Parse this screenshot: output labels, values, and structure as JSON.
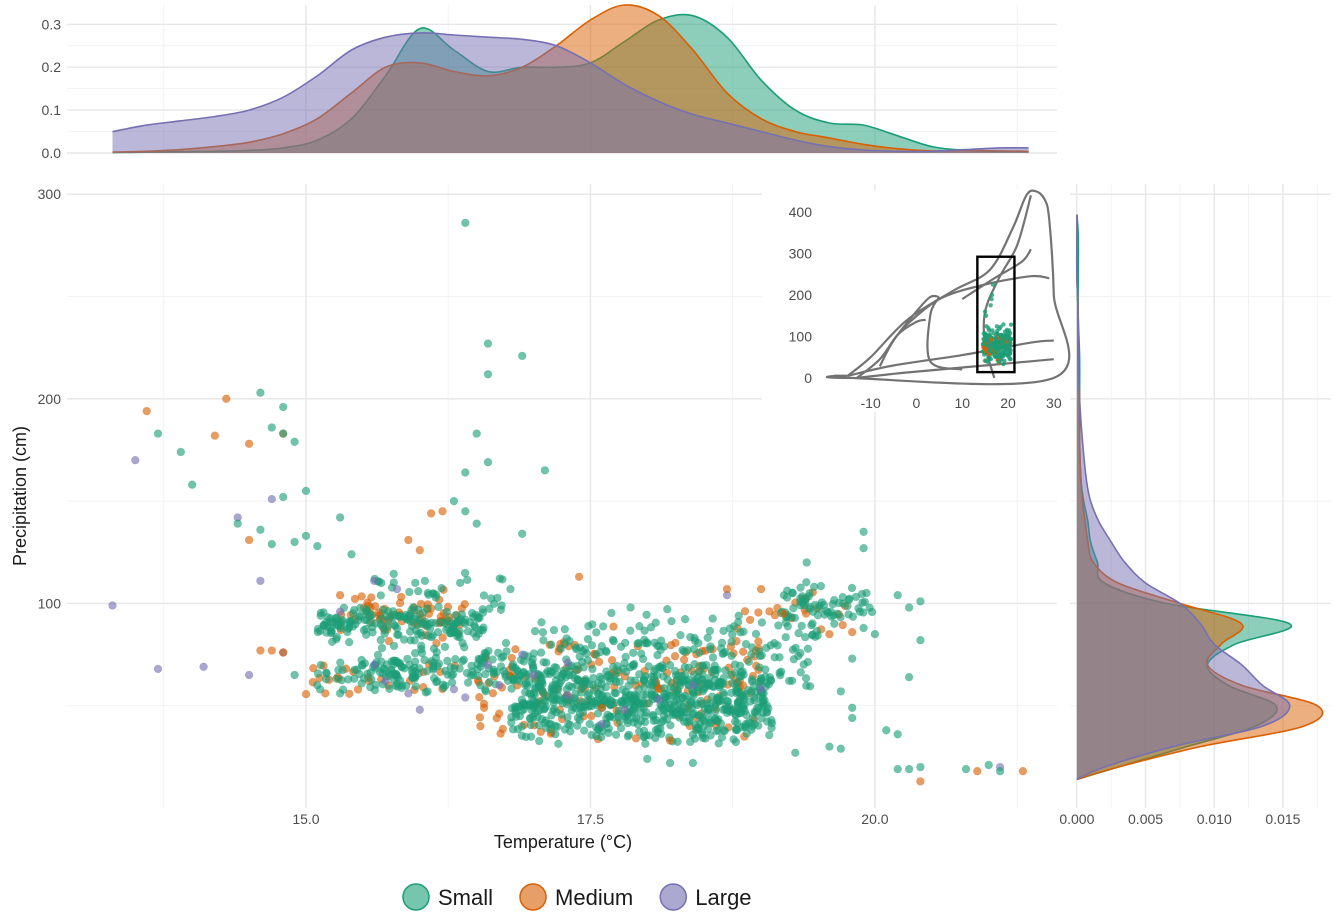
{
  "chart_data": [
    {
      "id": "main-scatter",
      "type": "scatter",
      "xlabel": "Temperature (°C)",
      "ylabel": "Precipitation (cm)",
      "xlim": [
        12.9,
        21.6
      ],
      "ylim": [
        0,
        305
      ],
      "x_ticks": [
        15.0,
        17.5,
        20.0
      ],
      "x_tick_labels": [
        "15.0",
        "17.5",
        "20.0"
      ],
      "y_ticks": [
        100,
        200,
        300
      ],
      "y_tick_labels": [
        "100",
        "200",
        "300"
      ],
      "grid": true,
      "legend": {
        "position": "bottom",
        "title": ""
      },
      "series": [
        {
          "name": "Small",
          "color": "#1b9e77"
        },
        {
          "name": "Medium",
          "color": "#d95f02"
        },
        {
          "name": "Large",
          "color": "#7570b3"
        }
      ],
      "points": {
        "Small": [
          [
            16.4,
            286
          ],
          [
            16.6,
            227
          ],
          [
            16.6,
            212
          ],
          [
            16.9,
            221
          ],
          [
            14.6,
            203
          ],
          [
            14.8,
            196
          ],
          [
            14.7,
            186
          ],
          [
            14.9,
            179
          ],
          [
            14.8,
            183
          ],
          [
            13.7,
            183
          ],
          [
            13.9,
            174
          ],
          [
            14.0,
            158
          ],
          [
            15.0,
            155
          ],
          [
            16.5,
            183
          ],
          [
            16.6,
            169
          ],
          [
            16.4,
            164
          ],
          [
            17.1,
            165
          ],
          [
            14.4,
            139
          ],
          [
            14.6,
            136
          ],
          [
            14.8,
            152
          ],
          [
            14.7,
            129
          ],
          [
            14.9,
            130
          ],
          [
            15.0,
            133
          ],
          [
            15.1,
            128
          ],
          [
            15.3,
            142
          ],
          [
            16.3,
            150
          ],
          [
            16.4,
            145
          ],
          [
            16.5,
            139
          ],
          [
            16.9,
            134
          ],
          [
            15.4,
            124
          ],
          [
            19.4,
            120
          ],
          [
            19.9,
            135
          ],
          [
            19.9,
            127
          ],
          [
            14.9,
            65
          ],
          [
            15.1,
            60
          ],
          [
            15.3,
            56
          ],
          [
            20.2,
            104
          ],
          [
            20.4,
            101
          ],
          [
            20.3,
            98
          ],
          [
            20.4,
            82
          ],
          [
            20.3,
            64
          ],
          [
            20.1,
            38
          ],
          [
            20.2,
            36
          ],
          [
            20.2,
            19
          ],
          [
            20.3,
            19
          ],
          [
            20.4,
            20
          ],
          [
            20.8,
            19
          ],
          [
            21.0,
            21
          ],
          [
            21.1,
            18
          ],
          [
            18.0,
            24
          ],
          [
            18.2,
            22
          ],
          [
            18.4,
            22
          ],
          [
            19.3,
            27
          ],
          [
            19.6,
            30
          ],
          [
            19.7,
            29
          ],
          [
            19.8,
            49
          ],
          [
            19.8,
            44
          ],
          [
            19.7,
            57
          ],
          [
            19.8,
            73
          ],
          [
            19.9,
            88
          ],
          [
            20.0,
            85
          ]
        ],
        "Medium": [
          [
            13.6,
            194
          ],
          [
            14.3,
            200
          ],
          [
            14.2,
            182
          ],
          [
            14.5,
            178
          ],
          [
            14.5,
            131
          ],
          [
            14.6,
            77
          ],
          [
            14.7,
            77
          ],
          [
            14.8,
            76
          ],
          [
            14.8,
            183
          ],
          [
            16.1,
            144
          ],
          [
            16.2,
            145
          ],
          [
            16.0,
            126
          ],
          [
            15.9,
            131
          ],
          [
            15.3,
            104
          ],
          [
            20.9,
            18
          ],
          [
            21.3,
            18
          ],
          [
            20.4,
            13
          ],
          [
            17.6,
            49
          ],
          [
            17.9,
            34
          ],
          [
            18.2,
            33
          ],
          [
            19.6,
            85
          ],
          [
            19.8,
            86
          ],
          [
            19.2,
            95
          ],
          [
            18.7,
            107
          ],
          [
            19.0,
            107
          ],
          [
            17.4,
            113
          ]
        ],
        "Large": [
          [
            13.3,
            99
          ],
          [
            13.5,
            170
          ],
          [
            13.7,
            68
          ],
          [
            14.1,
            69
          ],
          [
            14.5,
            65
          ],
          [
            14.6,
            111
          ],
          [
            14.7,
            151
          ],
          [
            14.8,
            76
          ],
          [
            14.4,
            142
          ],
          [
            15.6,
            111
          ],
          [
            15.8,
            107
          ],
          [
            15.6,
            70
          ],
          [
            15.7,
            62
          ],
          [
            15.9,
            56
          ],
          [
            16.0,
            48
          ],
          [
            16.3,
            58
          ],
          [
            16.4,
            54
          ],
          [
            16.7,
            60
          ],
          [
            17.0,
            65
          ],
          [
            17.3,
            71
          ],
          [
            17.6,
            41
          ],
          [
            17.8,
            48
          ],
          [
            18.1,
            53
          ],
          [
            18.4,
            60
          ],
          [
            18.7,
            104
          ],
          [
            19.0,
            58
          ],
          [
            21.1,
            20
          ],
          [
            16.6,
            70
          ],
          [
            16.9,
            75
          ],
          [
            17.3,
            55
          ],
          [
            15.3,
            96
          ]
        ]
      },
      "clusters": [
        {
          "series": "Small",
          "x": [
            15.1,
            16.6
          ],
          "y": [
            80,
            100
          ],
          "n": 170
        },
        {
          "series": "Small",
          "x": [
            15.6,
            17.0
          ],
          "y": [
            55,
            82
          ],
          "n": 130
        },
        {
          "series": "Small",
          "x": [
            16.8,
            19.1
          ],
          "y": [
            30,
            72
          ],
          "n": 640
        },
        {
          "series": "Small",
          "x": [
            17.0,
            18.4
          ],
          "y": [
            55,
            100
          ],
          "n": 110
        },
        {
          "series": "Small",
          "x": [
            18.4,
            19.5
          ],
          "y": [
            55,
            100
          ],
          "n": 90
        },
        {
          "series": "Small",
          "x": [
            19.2,
            20.0
          ],
          "y": [
            88,
            112
          ],
          "n": 65
        },
        {
          "series": "Small",
          "x": [
            15.1,
            16.0
          ],
          "y": [
            56,
            75
          ],
          "n": 60
        },
        {
          "series": "Small",
          "x": [
            15.6,
            16.8
          ],
          "y": [
            90,
            120
          ],
          "n": 35
        },
        {
          "series": "Medium",
          "x": [
            15.3,
            16.4
          ],
          "y": [
            78,
            110
          ],
          "n": 70
        },
        {
          "series": "Medium",
          "x": [
            16.5,
            19.0
          ],
          "y": [
            30,
            90
          ],
          "n": 170
        },
        {
          "series": "Medium",
          "x": [
            18.8,
            19.8
          ],
          "y": [
            85,
            110
          ],
          "n": 18
        },
        {
          "series": "Medium",
          "x": [
            15.0,
            16.4
          ],
          "y": [
            55,
            72
          ],
          "n": 25
        }
      ]
    },
    {
      "id": "top-density",
      "type": "area",
      "xlabel": "",
      "ylabel": "",
      "xlim": [
        12.9,
        21.6
      ],
      "ylim": [
        0,
        0.345
      ],
      "y_ticks": [
        0.0,
        0.1,
        0.2,
        0.3
      ],
      "y_tick_labels": [
        "0.0",
        "0.1",
        "0.2",
        "0.3"
      ],
      "x": [
        13.3,
        13.6,
        13.9,
        14.2,
        14.5,
        14.8,
        15.1,
        15.4,
        15.7,
        16.0,
        16.3,
        16.6,
        16.9,
        17.2,
        17.5,
        17.8,
        18.1,
        18.4,
        18.7,
        19.0,
        19.3,
        19.6,
        19.9,
        20.2,
        20.5,
        20.8,
        21.1,
        21.35
      ],
      "series": [
        {
          "name": "Small",
          "color": "#1b9e77",
          "values": [
            0.001,
            0.002,
            0.003,
            0.004,
            0.006,
            0.012,
            0.03,
            0.08,
            0.18,
            0.29,
            0.24,
            0.19,
            0.2,
            0.2,
            0.21,
            0.26,
            0.31,
            0.32,
            0.27,
            0.17,
            0.1,
            0.07,
            0.065,
            0.04,
            0.015,
            0.006,
            0.004,
            0.004
          ]
        },
        {
          "name": "Medium",
          "color": "#d95f02",
          "values": [
            0.002,
            0.004,
            0.008,
            0.015,
            0.025,
            0.045,
            0.08,
            0.14,
            0.2,
            0.21,
            0.19,
            0.18,
            0.2,
            0.25,
            0.31,
            0.345,
            0.32,
            0.24,
            0.14,
            0.08,
            0.05,
            0.035,
            0.02,
            0.01,
            0.005,
            0.006,
            0.005,
            0.004
          ]
        },
        {
          "name": "Large",
          "color": "#7570b3",
          "values": [
            0.05,
            0.065,
            0.075,
            0.085,
            0.1,
            0.13,
            0.18,
            0.24,
            0.27,
            0.28,
            0.275,
            0.27,
            0.265,
            0.25,
            0.21,
            0.16,
            0.12,
            0.09,
            0.07,
            0.05,
            0.03,
            0.015,
            0.007,
            0.004,
            0.004,
            0.008,
            0.012,
            0.012
          ]
        }
      ]
    },
    {
      "id": "right-density",
      "type": "area",
      "xlabel": "",
      "ylabel": "",
      "xlim": [
        -0.0005,
        0.0185
      ],
      "ylim": [
        0,
        305
      ],
      "x_ticks": [
        0.0,
        0.005,
        0.01,
        0.015
      ],
      "x_tick_labels": [
        "0.000",
        "0.005",
        "0.010",
        "0.015"
      ],
      "y": [
        14,
        20,
        30,
        40,
        50,
        60,
        70,
        80,
        90,
        100,
        110,
        120,
        130,
        140,
        150,
        160,
        180,
        200,
        220,
        240,
        260,
        280,
        290
      ],
      "series": [
        {
          "name": "Small",
          "color": "#1b9e77",
          "values": [
            0.0,
            0.003,
            0.008,
            0.013,
            0.0145,
            0.011,
            0.0095,
            0.0115,
            0.0155,
            0.0065,
            0.002,
            0.0015,
            0.001,
            0.0008,
            0.0005,
            0.0003,
            0.0002,
            0.0002,
            0.0002,
            0.0001,
            0.0001,
            0.0001,
            0.0
          ]
        },
        {
          "name": "Medium",
          "color": "#d95f02",
          "values": [
            0.0,
            0.003,
            0.009,
            0.0165,
            0.0175,
            0.012,
            0.0095,
            0.0105,
            0.012,
            0.0075,
            0.003,
            0.0012,
            0.0008,
            0.0006,
            0.0004,
            0.0003,
            0.0002,
            0.0002,
            0.0001,
            0.0001,
            0.0,
            0.0,
            0.0
          ]
        },
        {
          "name": "Large",
          "color": "#7570b3",
          "values": [
            0.0,
            0.002,
            0.007,
            0.0135,
            0.0155,
            0.0135,
            0.012,
            0.01,
            0.009,
            0.0075,
            0.005,
            0.0035,
            0.0025,
            0.0016,
            0.001,
            0.0007,
            0.0004,
            0.0002,
            0.0001,
            0.0001,
            0.0,
            0.0,
            0.0
          ]
        }
      ]
    },
    {
      "id": "inset-biome",
      "type": "scatter",
      "xlabel": "",
      "ylabel": "",
      "xlim": [
        -18,
        32
      ],
      "ylim": [
        -5,
        460
      ],
      "x_ticks": [
        -10,
        0,
        10,
        20,
        30
      ],
      "x_tick_labels": [
        "-10",
        "0",
        "10",
        "20",
        "30"
      ],
      "y_ticks": [
        0,
        100,
        200,
        300,
        400
      ],
      "y_tick_labels": [
        "0",
        "100",
        "200",
        "300",
        "400"
      ],
      "grid": false,
      "outline_color": "#737373",
      "box": {
        "x": [
          13.3,
          21.4
        ],
        "y": [
          14,
          292
        ]
      },
      "biome_lines": [
        [
          [
            -15,
            5
          ],
          [
            -5,
            30
          ],
          [
            10,
            55
          ],
          [
            25,
            85
          ],
          [
            30,
            90
          ]
        ],
        [
          [
            -13,
            0
          ],
          [
            -3,
            12
          ],
          [
            10,
            25
          ],
          [
            25,
            40
          ],
          [
            30,
            45
          ]
        ],
        [
          [
            -13,
            0
          ],
          [
            -8,
            45
          ],
          [
            -4,
            105
          ],
          [
            0,
            135
          ],
          [
            2,
            140
          ]
        ],
        [
          [
            -8,
            28
          ],
          [
            -5,
            90
          ],
          [
            0,
            160
          ],
          [
            3,
            195
          ],
          [
            5,
            195
          ]
        ],
        [
          [
            5,
            195
          ],
          [
            3,
            150
          ],
          [
            3,
            40
          ],
          [
            10,
            20
          ]
        ],
        [
          [
            -3,
            120
          ],
          [
            5,
            190
          ],
          [
            15,
            225
          ],
          [
            25,
            245
          ],
          [
            29,
            240
          ]
        ],
        [
          [
            10,
            190
          ],
          [
            17,
            240
          ],
          [
            23,
            280
          ],
          [
            25,
            310
          ]
        ],
        [
          [
            25,
            440
          ],
          [
            22,
            320
          ],
          [
            18,
            240
          ],
          [
            15,
            160
          ],
          [
            15,
            80
          ],
          [
            17,
            0
          ]
        ]
      ],
      "biome_outline": [
        [
          -15,
          5
        ],
        [
          -10,
          50
        ],
        [
          -2,
          140
        ],
        [
          8,
          210
        ],
        [
          16,
          260
        ],
        [
          21,
          360
        ],
        [
          24,
          440
        ],
        [
          26,
          450
        ],
        [
          28,
          430
        ],
        [
          29,
          380
        ],
        [
          30,
          200
        ],
        [
          30,
          0
        ],
        [
          -15,
          0
        ],
        [
          -18,
          5
        ],
        [
          -15,
          5
        ]
      ]
    }
  ],
  "legend": {
    "items": [
      {
        "label": "Small",
        "color": "#1b9e77"
      },
      {
        "label": "Medium",
        "color": "#d95f02"
      },
      {
        "label": "Large",
        "color": "#7570b3"
      }
    ]
  }
}
